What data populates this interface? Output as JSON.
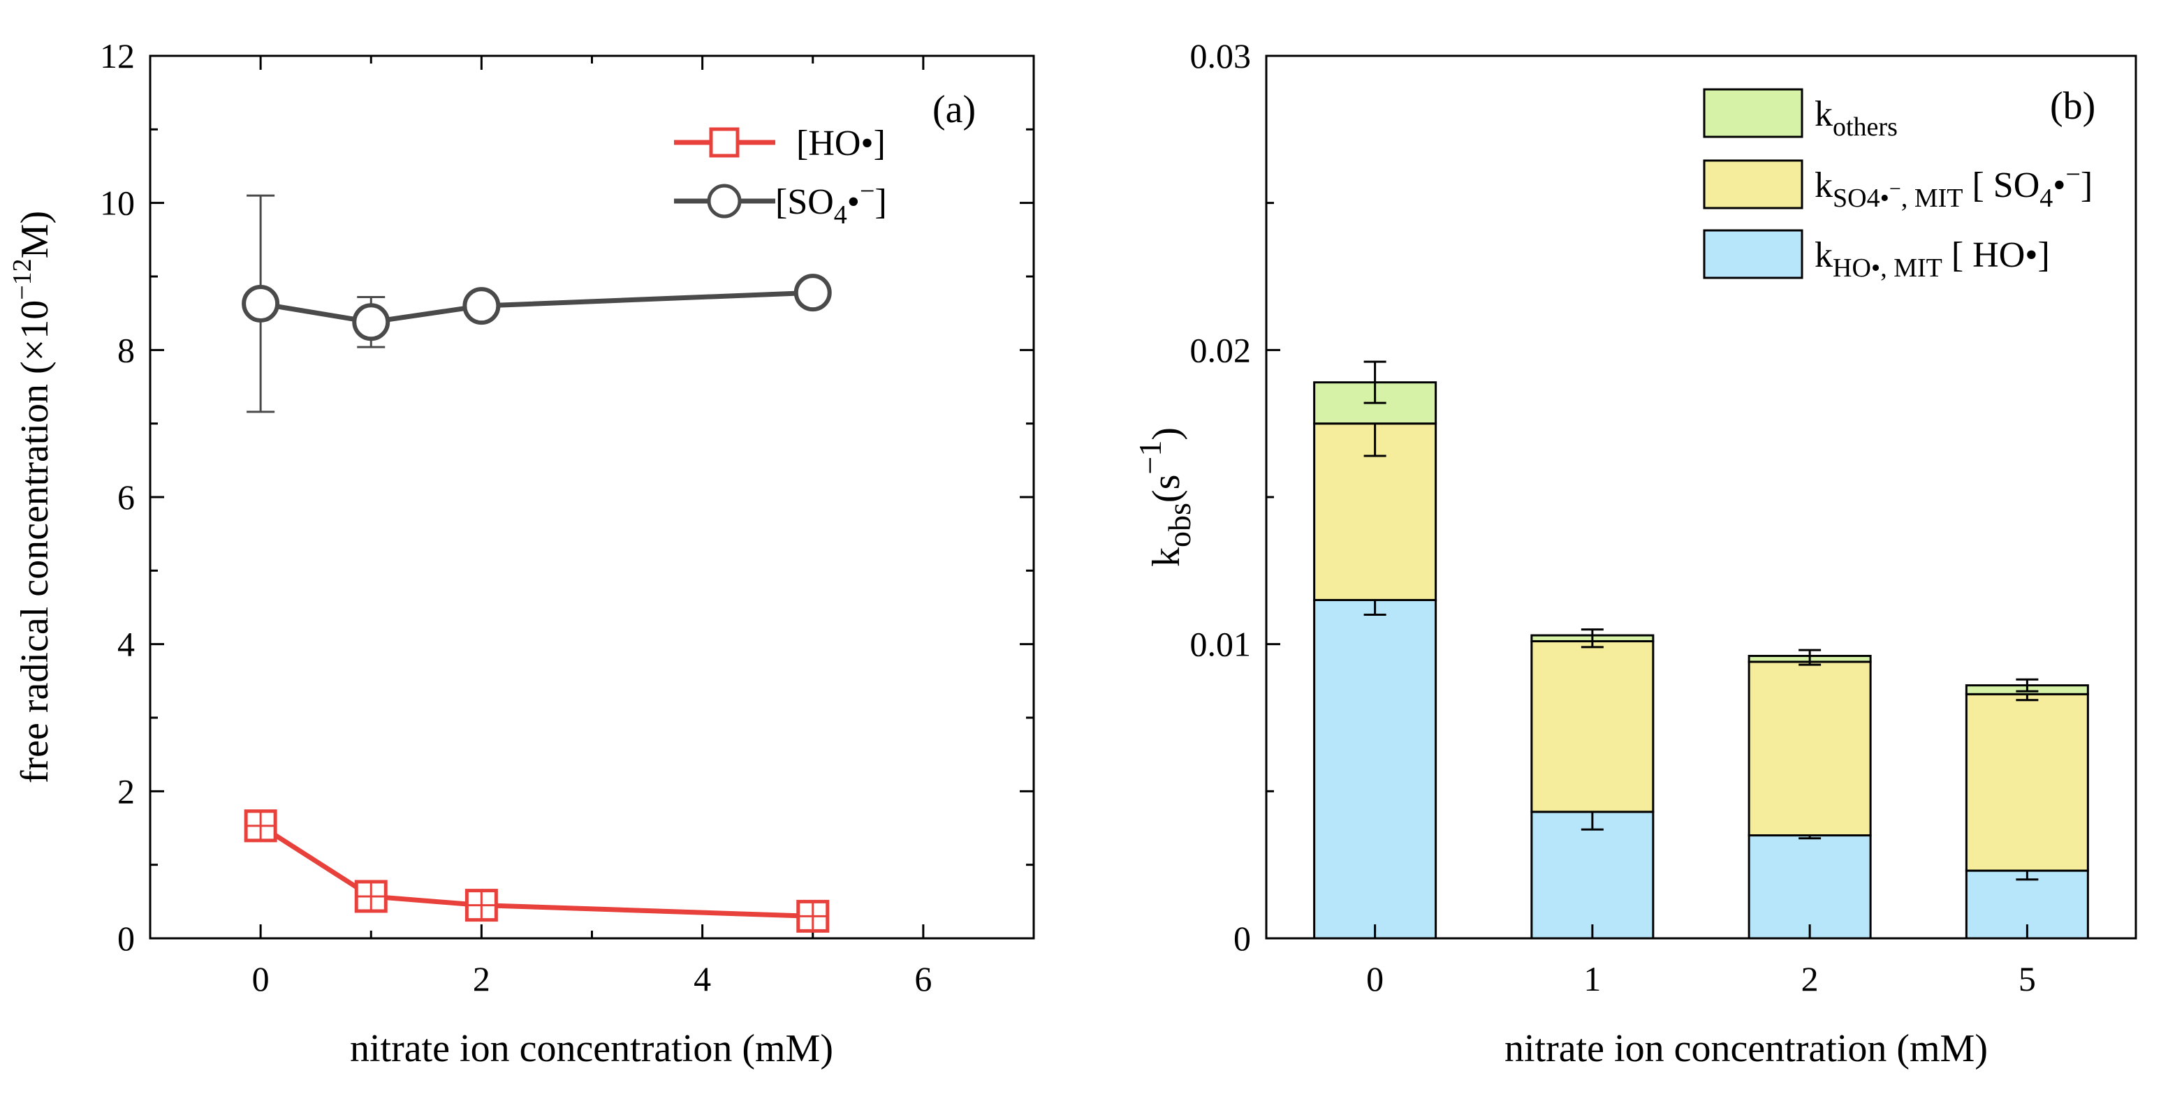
{
  "chart_data": [
    {
      "type": "line",
      "panel_label": "(a)",
      "xlabel": "nitrate ion concentration (mM)",
      "ylabel": {
        "prefix": "free radical concentration (×10",
        "exp": "−12",
        "suffix": "M)"
      },
      "xlim": [
        -1,
        7
      ],
      "ylim": [
        0,
        12
      ],
      "xticks": [
        0,
        2,
        4,
        6
      ],
      "yticks": [
        0,
        2,
        4,
        6,
        8,
        10,
        12
      ],
      "legend_position": "top-right",
      "series": [
        {
          "name": "[HO•]",
          "legend": {
            "base": "[HO•]"
          },
          "marker": "square",
          "color": "#e8413c",
          "x": [
            0,
            1,
            2,
            5
          ],
          "y": [
            1.53,
            0.57,
            0.45,
            0.3
          ],
          "err": [
            0.12,
            0.1,
            0.05,
            0.05
          ]
        },
        {
          "name": "[SO4•−]",
          "legend": {
            "pre": "[SO",
            "sub": "4",
            "post": "•",
            "sup": "−",
            "end": "]"
          },
          "marker": "circle",
          "color": "#4a4a4a",
          "x": [
            0,
            1,
            2,
            5
          ],
          "y": [
            8.63,
            8.38,
            8.6,
            8.78
          ],
          "err": [
            1.47,
            0.34,
            0.1,
            0.05
          ]
        }
      ]
    },
    {
      "type": "bar",
      "stacked": true,
      "panel_label": "(b)",
      "xlabel": "nitrate ion concentration (mM)",
      "ylabel": {
        "base": "k",
        "sub": "obs",
        "mid": "(s",
        "sup": "−1",
        "end": ")"
      },
      "categories": [
        "0",
        "1",
        "2",
        "5"
      ],
      "ylim": [
        0,
        0.03
      ],
      "yticks": [
        0,
        0.01,
        0.02,
        0.03
      ],
      "ytick_labels": [
        "0",
        "0.01",
        "0.02",
        "0.03"
      ],
      "legend_position": "top-right",
      "series": [
        {
          "name": "kHO•, MIT [HO•]",
          "legend": {
            "base": "k",
            "sub": "HO•, MIT",
            "post": " [ HO•]"
          },
          "color": "#b7e6fb",
          "values": [
            0.0115,
            0.0043,
            0.0035,
            0.0023
          ],
          "err": [
            0.0005,
            0.0006,
            0.0001,
            0.0003
          ]
        },
        {
          "name": "kSO4•−, MIT [SO4•−]",
          "legend": {
            "base": "k",
            "sub": "SO4•",
            "subsup": "−",
            "sub2": ", MIT",
            "post": " [ SO",
            "post_sub": "4",
            "post2": "•",
            "post_sup": "−",
            "post_end": "]"
          },
          "color": "#f5ec9c",
          "values": [
            0.006,
            0.0058,
            0.0059,
            0.006
          ],
          "err": [
            0.0011,
            0.0002,
            0.0001,
            0.0002
          ]
        },
        {
          "name": "kothers",
          "legend": {
            "base": "k",
            "sub": "others"
          },
          "color": "#d5f2a6",
          "values": [
            0.0014,
            0.0002,
            0.0002,
            0.0003
          ],
          "err": [
            0.0007,
            0.0002,
            0.0002,
            0.0002
          ]
        }
      ]
    }
  ]
}
